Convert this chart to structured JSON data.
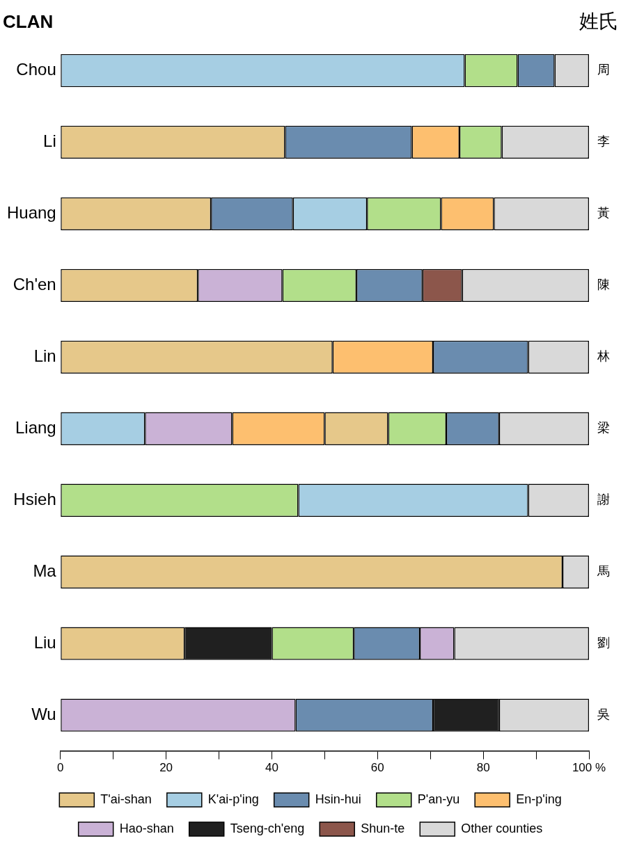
{
  "chart_data": {
    "type": "bar",
    "orientation": "horizontal",
    "ylabel": "CLAN",
    "y2label": "姓氏",
    "categories": [
      "Chou",
      "Li",
      "Huang",
      "Ch'en",
      "Lin",
      "Liang",
      "Hsieh",
      "Ma",
      "Liu",
      "Wu"
    ],
    "y2_categories": [
      "周",
      "李",
      "黃",
      "陳",
      "林",
      "梁",
      "謝",
      "馬",
      "劉",
      "吳"
    ],
    "xlim": [
      0,
      100
    ],
    "xticks": [
      0,
      {
        "value": 10,
        "label": null
      },
      20,
      {
        "value": 30,
        "label": null
      },
      40,
      {
        "value": 50,
        "label": null
      },
      60,
      {
        "value": 70,
        "label": null
      },
      80,
      {
        "value": 90,
        "label": null
      },
      {
        "value": 100,
        "label": "100 %"
      }
    ],
    "grid": false,
    "legend": "bottom",
    "series": [
      {
        "name": "T'ai-shan",
        "color": "#e6c88a",
        "base": [
          null,
          0,
          0,
          0,
          0,
          50,
          null,
          0,
          0,
          null
        ],
        "values": [
          null,
          42.5,
          28.5,
          26,
          51.5,
          12,
          null,
          95,
          23.5,
          null
        ]
      },
      {
        "name": "K'ai-p'ing",
        "color": "#a6cee3",
        "base": [
          0,
          null,
          44,
          null,
          null,
          0,
          45,
          null,
          null,
          null
        ],
        "values": [
          76.5,
          null,
          14,
          null,
          null,
          16,
          43.5,
          null,
          null,
          null
        ]
      },
      {
        "name": "Hsin-hui",
        "color": "#6a8caf",
        "base": [
          86.5,
          42.5,
          28.5,
          56,
          70.5,
          73,
          null,
          null,
          55.5,
          44.5
        ],
        "values": [
          7,
          24,
          15.5,
          12.5,
          18,
          10,
          null,
          null,
          12.5,
          26
        ]
      },
      {
        "name": "P'an-yu",
        "color": "#b2df8a",
        "base": [
          76.5,
          75.5,
          58,
          42,
          null,
          62,
          0,
          null,
          40,
          null
        ],
        "values": [
          10,
          8,
          14,
          14,
          null,
          11,
          45,
          null,
          15.5,
          null
        ]
      },
      {
        "name": "En-p'ing",
        "color": "#fdbf6f",
        "base": [
          null,
          66.5,
          72,
          null,
          51.5,
          32.5,
          null,
          null,
          null,
          null
        ],
        "values": [
          null,
          9,
          10,
          null,
          19,
          17.5,
          null,
          null,
          null,
          null
        ]
      },
      {
        "name": "Hao-shan",
        "color": "#cab2d6",
        "base": [
          null,
          null,
          null,
          26,
          null,
          16,
          null,
          null,
          68,
          0
        ],
        "values": [
          null,
          null,
          null,
          16,
          null,
          16.5,
          null,
          null,
          6.5,
          44.5
        ]
      },
      {
        "name": "Tseng-ch'eng",
        "color": "#202020",
        "base": [
          null,
          null,
          null,
          null,
          null,
          null,
          null,
          null,
          23.5,
          70.5
        ],
        "values": [
          null,
          null,
          null,
          null,
          null,
          null,
          null,
          null,
          16.5,
          12.5
        ]
      },
      {
        "name": "Shun-te",
        "color": "#8c564b",
        "base": [
          null,
          null,
          null,
          68.5,
          null,
          null,
          null,
          null,
          null,
          null
        ],
        "values": [
          null,
          null,
          null,
          7.5,
          null,
          null,
          null,
          null,
          null,
          null
        ]
      },
      {
        "name": "Other counties",
        "color": "#d9d9d9",
        "base": [
          93.5,
          83.5,
          82,
          76,
          88.5,
          83,
          88.5,
          95,
          74.5,
          83
        ],
        "values": [
          6.5,
          16.5,
          18,
          24,
          11.5,
          17,
          11.5,
          5,
          25.5,
          17
        ]
      }
    ]
  }
}
